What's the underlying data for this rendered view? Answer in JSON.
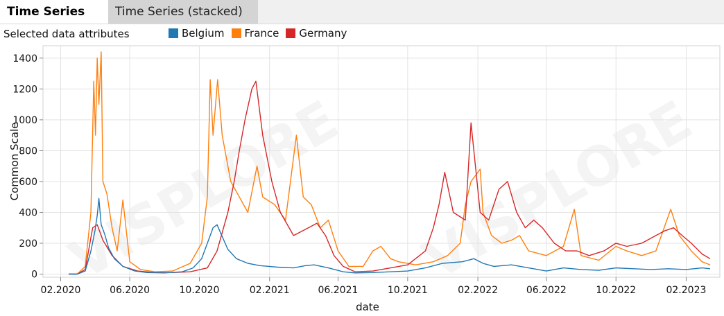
{
  "tabs": [
    {
      "label": "Time Series",
      "active": true
    },
    {
      "label": "Time Series (stacked)",
      "active": false
    }
  ],
  "attributes_label": "Selected data attributes",
  "watermark": "VISPLORE",
  "chart_data": {
    "type": "line",
    "xlabel": "date",
    "ylabel": "Common Scale",
    "ylim": [
      -20,
      1480
    ],
    "yticks": [
      0,
      200,
      400,
      600,
      800,
      1000,
      1200,
      1400
    ],
    "xlim": [
      "2020-01-01",
      "2023-04-01"
    ],
    "xticks": [
      {
        "date": "2020-02-01",
        "label": "02.2020"
      },
      {
        "date": "2020-06-01",
        "label": "06.2020"
      },
      {
        "date": "2020-10-01",
        "label": "10.2020"
      },
      {
        "date": "2021-02-01",
        "label": "02.2021"
      },
      {
        "date": "2021-06-01",
        "label": "06.2021"
      },
      {
        "date": "2021-10-01",
        "label": "10.2021"
      },
      {
        "date": "2022-02-01",
        "label": "02.2022"
      },
      {
        "date": "2022-06-01",
        "label": "06.2022"
      },
      {
        "date": "2022-10-01",
        "label": "10.2022"
      },
      {
        "date": "2023-02-01",
        "label": "02.2023"
      }
    ],
    "grid": true,
    "legend_position": "top",
    "series": [
      {
        "name": "Belgium",
        "color": "#1f77b4",
        "points": [
          [
            "2020-02-15",
            0
          ],
          [
            "2020-03-01",
            0
          ],
          [
            "2020-03-15",
            20
          ],
          [
            "2020-03-25",
            150
          ],
          [
            "2020-04-01",
            280
          ],
          [
            "2020-04-05",
            380
          ],
          [
            "2020-04-08",
            490
          ],
          [
            "2020-04-12",
            320
          ],
          [
            "2020-04-18",
            260
          ],
          [
            "2020-04-25",
            170
          ],
          [
            "2020-05-05",
            100
          ],
          [
            "2020-05-20",
            50
          ],
          [
            "2020-06-10",
            20
          ],
          [
            "2020-07-01",
            10
          ],
          [
            "2020-08-01",
            8
          ],
          [
            "2020-09-01",
            15
          ],
          [
            "2020-09-20",
            40
          ],
          [
            "2020-10-05",
            100
          ],
          [
            "2020-10-15",
            200
          ],
          [
            "2020-10-25",
            300
          ],
          [
            "2020-11-01",
            320
          ],
          [
            "2020-11-08",
            260
          ],
          [
            "2020-11-20",
            160
          ],
          [
            "2020-12-05",
            100
          ],
          [
            "2020-12-25",
            70
          ],
          [
            "2021-01-15",
            55
          ],
          [
            "2021-02-15",
            45
          ],
          [
            "2021-03-15",
            40
          ],
          [
            "2021-04-05",
            55
          ],
          [
            "2021-04-20",
            60
          ],
          [
            "2021-05-15",
            40
          ],
          [
            "2021-06-10",
            15
          ],
          [
            "2021-07-01",
            8
          ],
          [
            "2021-08-01",
            10
          ],
          [
            "2021-09-01",
            15
          ],
          [
            "2021-10-01",
            20
          ],
          [
            "2021-11-01",
            40
          ],
          [
            "2021-12-01",
            70
          ],
          [
            "2022-01-05",
            80
          ],
          [
            "2022-01-25",
            100
          ],
          [
            "2022-02-10",
            70
          ],
          [
            "2022-03-01",
            50
          ],
          [
            "2022-04-01",
            60
          ],
          [
            "2022-05-01",
            40
          ],
          [
            "2022-06-01",
            20
          ],
          [
            "2022-07-01",
            40
          ],
          [
            "2022-08-01",
            30
          ],
          [
            "2022-09-01",
            25
          ],
          [
            "2022-10-01",
            40
          ],
          [
            "2022-11-01",
            35
          ],
          [
            "2022-12-01",
            30
          ],
          [
            "2023-01-01",
            35
          ],
          [
            "2023-02-01",
            30
          ],
          [
            "2023-03-01",
            40
          ],
          [
            "2023-03-15",
            35
          ]
        ]
      },
      {
        "name": "France",
        "color": "#ff7f0e",
        "points": [
          [
            "2020-02-15",
            0
          ],
          [
            "2020-03-01",
            0
          ],
          [
            "2020-03-15",
            50
          ],
          [
            "2020-03-25",
            400
          ],
          [
            "2020-03-30",
            1250
          ],
          [
            "2020-04-02",
            900
          ],
          [
            "2020-04-05",
            1400
          ],
          [
            "2020-04-08",
            1100
          ],
          [
            "2020-04-12",
            1440
          ],
          [
            "2020-04-15",
            600
          ],
          [
            "2020-04-22",
            520
          ],
          [
            "2020-05-01",
            300
          ],
          [
            "2020-05-10",
            150
          ],
          [
            "2020-05-20",
            480
          ],
          [
            "2020-06-01",
            80
          ],
          [
            "2020-06-20",
            30
          ],
          [
            "2020-07-15",
            15
          ],
          [
            "2020-08-15",
            20
          ],
          [
            "2020-09-15",
            70
          ],
          [
            "2020-10-05",
            200
          ],
          [
            "2020-10-15",
            500
          ],
          [
            "2020-10-20",
            1260
          ],
          [
            "2020-10-25",
            900
          ],
          [
            "2020-11-02",
            1260
          ],
          [
            "2020-11-10",
            900
          ],
          [
            "2020-11-25",
            600
          ],
          [
            "2020-12-10",
            500
          ],
          [
            "2020-12-25",
            400
          ],
          [
            "2021-01-10",
            700
          ],
          [
            "2021-01-20",
            500
          ],
          [
            "2021-02-10",
            450
          ],
          [
            "2021-03-01",
            350
          ],
          [
            "2021-03-20",
            900
          ],
          [
            "2021-04-01",
            500
          ],
          [
            "2021-04-15",
            450
          ],
          [
            "2021-05-01",
            300
          ],
          [
            "2021-05-15",
            350
          ],
          [
            "2021-06-01",
            150
          ],
          [
            "2021-06-20",
            50
          ],
          [
            "2021-07-15",
            50
          ],
          [
            "2021-08-01",
            150
          ],
          [
            "2021-08-15",
            180
          ],
          [
            "2021-09-01",
            100
          ],
          [
            "2021-09-15",
            80
          ],
          [
            "2021-10-15",
            60
          ],
          [
            "2021-11-15",
            80
          ],
          [
            "2021-12-10",
            120
          ],
          [
            "2022-01-01",
            200
          ],
          [
            "2022-01-10",
            450
          ],
          [
            "2022-01-20",
            600
          ],
          [
            "2022-02-05",
            680
          ],
          [
            "2022-02-10",
            400
          ],
          [
            "2022-02-25",
            250
          ],
          [
            "2022-03-15",
            200
          ],
          [
            "2022-04-01",
            220
          ],
          [
            "2022-04-15",
            250
          ],
          [
            "2022-05-01",
            150
          ],
          [
            "2022-06-01",
            120
          ],
          [
            "2022-07-01",
            180
          ],
          [
            "2022-07-20",
            420
          ],
          [
            "2022-08-01",
            120
          ],
          [
            "2022-09-01",
            90
          ],
          [
            "2022-10-01",
            180
          ],
          [
            "2022-10-20",
            150
          ],
          [
            "2022-11-15",
            120
          ],
          [
            "2022-12-10",
            150
          ],
          [
            "2023-01-05",
            420
          ],
          [
            "2023-01-20",
            250
          ],
          [
            "2023-02-10",
            150
          ],
          [
            "2023-03-01",
            80
          ],
          [
            "2023-03-15",
            60
          ]
        ]
      },
      {
        "name": "Germany",
        "color": "#d62728",
        "points": [
          [
            "2020-02-15",
            0
          ],
          [
            "2020-03-01",
            0
          ],
          [
            "2020-03-15",
            30
          ],
          [
            "2020-03-28",
            300
          ],
          [
            "2020-04-05",
            320
          ],
          [
            "2020-04-15",
            220
          ],
          [
            "2020-05-01",
            120
          ],
          [
            "2020-05-20",
            50
          ],
          [
            "2020-06-15",
            20
          ],
          [
            "2020-07-15",
            10
          ],
          [
            "2020-08-15",
            10
          ],
          [
            "2020-09-15",
            15
          ],
          [
            "2020-10-15",
            40
          ],
          [
            "2020-11-01",
            150
          ],
          [
            "2020-11-20",
            400
          ],
          [
            "2020-12-01",
            600
          ],
          [
            "2020-12-10",
            800
          ],
          [
            "2020-12-20",
            1000
          ],
          [
            "2021-01-01",
            1200
          ],
          [
            "2021-01-08",
            1250
          ],
          [
            "2021-01-20",
            900
          ],
          [
            "2021-02-05",
            600
          ],
          [
            "2021-02-20",
            400
          ],
          [
            "2021-03-15",
            250
          ],
          [
            "2021-04-10",
            300
          ],
          [
            "2021-04-25",
            330
          ],
          [
            "2021-05-10",
            250
          ],
          [
            "2021-05-25",
            120
          ],
          [
            "2021-06-10",
            50
          ],
          [
            "2021-07-01",
            15
          ],
          [
            "2021-08-01",
            20
          ],
          [
            "2021-09-01",
            40
          ],
          [
            "2021-10-01",
            60
          ],
          [
            "2021-11-01",
            150
          ],
          [
            "2021-11-15",
            300
          ],
          [
            "2021-11-25",
            450
          ],
          [
            "2021-12-05",
            660
          ],
          [
            "2021-12-20",
            400
          ],
          [
            "2022-01-10",
            350
          ],
          [
            "2022-01-20",
            980
          ],
          [
            "2022-02-05",
            400
          ],
          [
            "2022-02-20",
            350
          ],
          [
            "2022-03-10",
            550
          ],
          [
            "2022-03-25",
            600
          ],
          [
            "2022-04-10",
            400
          ],
          [
            "2022-04-25",
            300
          ],
          [
            "2022-05-10",
            350
          ],
          [
            "2022-05-25",
            300
          ],
          [
            "2022-06-15",
            200
          ],
          [
            "2022-07-05",
            150
          ],
          [
            "2022-07-25",
            150
          ],
          [
            "2022-08-15",
            120
          ],
          [
            "2022-09-10",
            150
          ],
          [
            "2022-10-01",
            200
          ],
          [
            "2022-10-20",
            180
          ],
          [
            "2022-11-15",
            200
          ],
          [
            "2022-12-10",
            250
          ],
          [
            "2022-12-25",
            280
          ],
          [
            "2023-01-10",
            300
          ],
          [
            "2023-01-25",
            250
          ],
          [
            "2023-02-10",
            200
          ],
          [
            "2023-03-01",
            130
          ],
          [
            "2023-03-15",
            100
          ]
        ]
      }
    ]
  }
}
